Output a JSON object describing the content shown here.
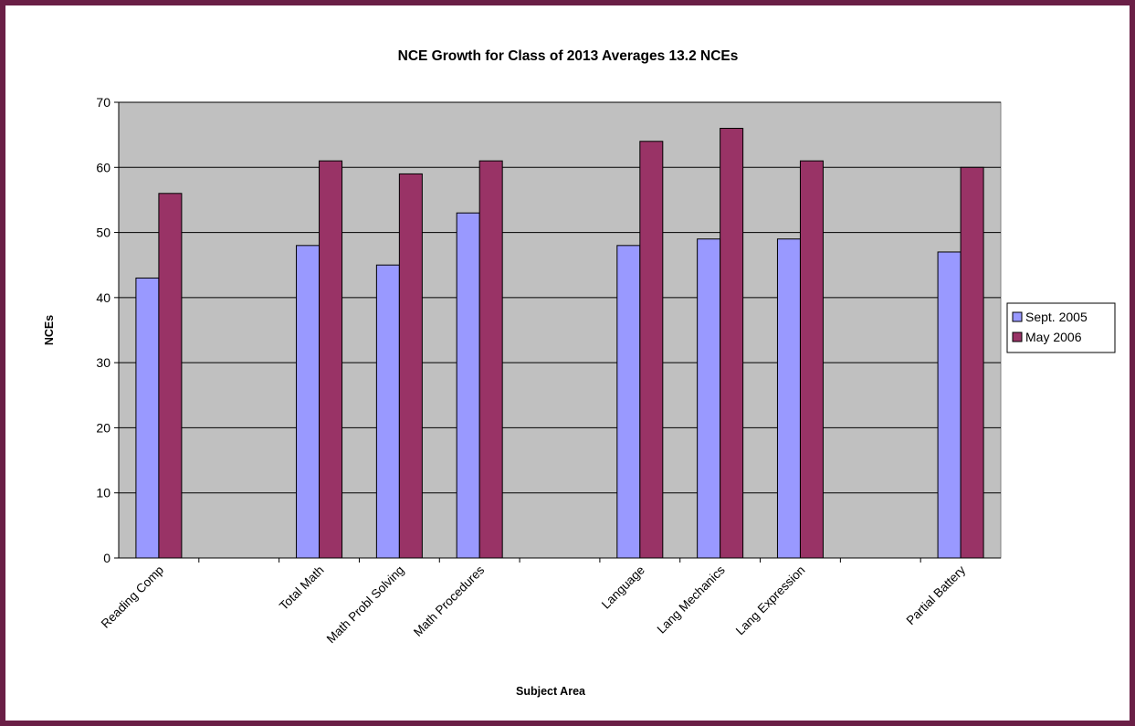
{
  "chart_data": {
    "type": "bar",
    "title": "NCE Growth for Class of 2013 Averages 13.2 NCEs",
    "xlabel": "Subject Area",
    "ylabel": "NCEs",
    "ylim": [
      0,
      70
    ],
    "yticks": [
      0,
      10,
      20,
      30,
      40,
      50,
      60,
      70
    ],
    "grid": true,
    "legend_position": "right",
    "categories": [
      "Reading Comp",
      "",
      "Total Math",
      "Math Probl Solving",
      "Math Procedures",
      "",
      "Language",
      "Lang Mechanics",
      "Lang Expression",
      "",
      "Partial Battery"
    ],
    "series": [
      {
        "name": "Sept. 2005",
        "color": "#9999ff",
        "values": [
          43,
          null,
          48,
          45,
          53,
          null,
          48,
          49,
          49,
          null,
          47
        ]
      },
      {
        "name": "May 2006",
        "color": "#993366",
        "values": [
          56,
          null,
          61,
          59,
          61,
          null,
          64,
          66,
          61,
          null,
          60
        ]
      }
    ],
    "plot_background": "#c0c0c0"
  }
}
